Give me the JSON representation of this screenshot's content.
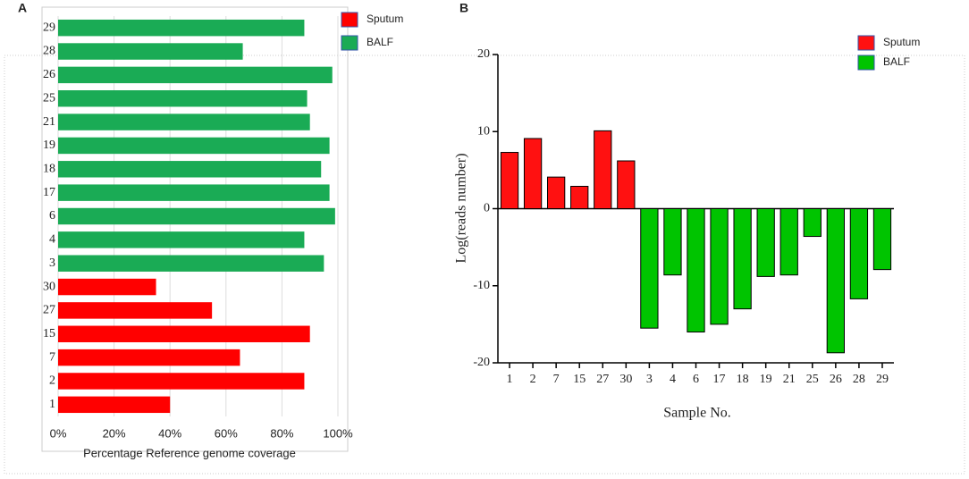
{
  "chart_data": [
    {
      "type": "hbar",
      "title": "A",
      "categories": [
        "1",
        "2",
        "7",
        "15",
        "27",
        "30",
        "3",
        "4",
        "6",
        "17",
        "18",
        "19",
        "21",
        "25",
        "26",
        "28",
        "29"
      ],
      "series": [
        {
          "name": "Sputum",
          "color": "#ff0000",
          "values": [
            40,
            88,
            65,
            90,
            55,
            35,
            null,
            null,
            null,
            null,
            null,
            null,
            null,
            null,
            null,
            null,
            null
          ]
        },
        {
          "name": "BALF",
          "color": "#1aab55",
          "values": [
            null,
            null,
            null,
            null,
            null,
            null,
            95,
            88,
            99,
            97,
            94,
            97,
            90,
            89,
            98,
            66,
            88
          ]
        }
      ],
      "xlim": [
        0,
        100
      ],
      "xticks": [
        {
          "value": 0,
          "label": "0%"
        },
        {
          "value": 20,
          "label": "20%"
        },
        {
          "value": 40,
          "label": "40%"
        },
        {
          "value": 60,
          "label": "60%"
        },
        {
          "value": 80,
          "label": "80%"
        },
        {
          "value": 100,
          "label": "100%"
        }
      ],
      "x_label": "Percentage Reference  genome coverage",
      "grid": true
    },
    {
      "type": "bar",
      "title": "B",
      "categories": [
        "1",
        "2",
        "7",
        "15",
        "27",
        "30",
        "3",
        "4",
        "6",
        "17",
        "18",
        "19",
        "21",
        "25",
        "26",
        "28",
        "29"
      ],
      "series": [
        {
          "name": "Sputum",
          "color": "#ff1111",
          "values": [
            7.3,
            9.1,
            4.1,
            2.9,
            10.1,
            6.2,
            null,
            null,
            null,
            null,
            null,
            null,
            null,
            null,
            null,
            null,
            null
          ]
        },
        {
          "name": "BALF",
          "color": "#00c400",
          "values": [
            null,
            null,
            null,
            null,
            null,
            null,
            -15.5,
            -8.6,
            -16.0,
            -15.0,
            -13.0,
            -8.8,
            -8.6,
            -3.6,
            -18.7,
            -11.7,
            -7.9
          ]
        }
      ],
      "ylim": [
        -20,
        20
      ],
      "yticks": [
        -20,
        -10,
        0,
        10,
        20
      ],
      "x_label": "Sample No.",
      "y_label": "Log(reads number)",
      "grid": false
    }
  ]
}
